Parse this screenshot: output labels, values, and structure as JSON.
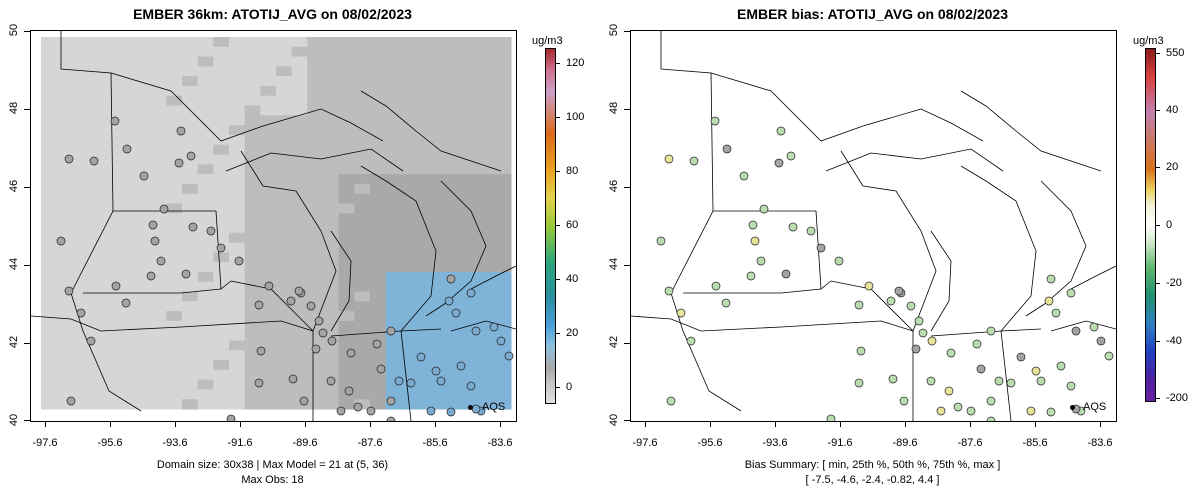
{
  "left": {
    "title": "EMBER 36km: ATOTIJ_AVG on 08/02/2023",
    "caption_line1": "Domain size: 30x38 | Max Model = 21 at (5, 36)",
    "caption_line2": "Max Obs: 18",
    "colorbar_unit": "ug/m3",
    "colorbar_ticks": [
      "120",
      "100",
      "80",
      "60",
      "40",
      "20",
      "0"
    ],
    "legend_label": "AQS"
  },
  "right": {
    "title": "EMBER bias: ATOTIJ_AVG on 08/02/2023",
    "caption_line1": "Bias Summary: [ min, 25th %, 50th %, 75th %, max ]",
    "caption_line2": "[ -7.5,   -4.6,   -2.4,   -0.82,   4.4 ]",
    "colorbar_unit": "ug/m3",
    "colorbar_ticks": [
      "550",
      "40",
      "20",
      "0",
      "-20",
      "-40",
      "-200"
    ],
    "legend_label": "AQS"
  },
  "axes": {
    "x_ticks": [
      "-97.6",
      "-95.6",
      "-93.6",
      "-91.6",
      "-89.6",
      "-87.6",
      "-85.6",
      "-83.6"
    ],
    "y_ticks": [
      "50",
      "48",
      "46",
      "44",
      "42",
      "40"
    ],
    "lon_range": [
      -98.2,
      -83.2
    ],
    "lat_range": [
      40.0,
      50.0
    ]
  },
  "colors": {
    "grid_light": "#d6d6d6",
    "grid_mid": "#bdbdbd",
    "grid_dark": "#a9a9a9",
    "grid_blue": "#7fb3d8",
    "station_gray": "#a4a4a4",
    "station_green": "#b9dcb0",
    "station_yellow": "#e8e39a"
  }
}
